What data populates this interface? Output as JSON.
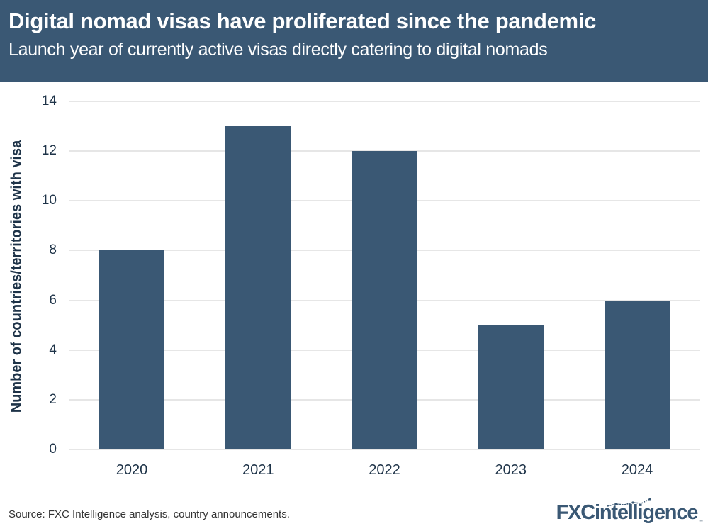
{
  "header": {
    "title": "Digital nomad visas have proliferated since the pandemic",
    "subtitle": "Launch year of currently active visas directly catering to digital nomads"
  },
  "chart_data": {
    "type": "bar",
    "title": "Digital nomad visas have proliferated since the pandemic",
    "subtitle": "Launch year of currently active visas directly catering to digital nomads",
    "categories": [
      "2020",
      "2021",
      "2022",
      "2023",
      "2024"
    ],
    "values": [
      8,
      13,
      12,
      5,
      6
    ],
    "xlabel": "",
    "ylabel": "Number of countries/territories with visa",
    "ylim": [
      0,
      14
    ],
    "yticks": [
      "0",
      "2",
      "4",
      "6",
      "8",
      "10",
      "12",
      "14"
    ],
    "grid": true,
    "legend": null,
    "bar_color": "#3a5874"
  },
  "footer": {
    "source": "Source: FXC Intelligence analysis, country announcements.",
    "logo_fxc": "FXC",
    "logo_intelligence": "intelligence",
    "logo_tm": "™"
  },
  "colors": {
    "header_bg": "#3a5874",
    "bar": "#3a5874",
    "text_dark": "#1e3348",
    "gridline": "#e6e6e6"
  }
}
